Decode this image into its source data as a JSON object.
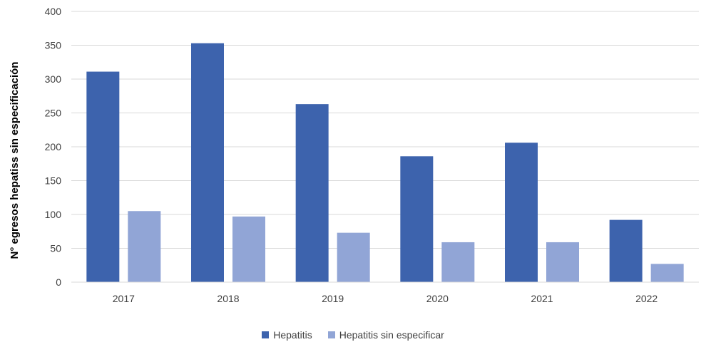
{
  "chart_data": {
    "type": "bar",
    "title": "",
    "xlabel": "",
    "ylabel": "N° egresos hepatiss sin especificación",
    "categories": [
      "2017",
      "2018",
      "2019",
      "2020",
      "2021",
      "2022"
    ],
    "series": [
      {
        "name": "Hepatitis",
        "values": [
          311,
          353,
          263,
          186,
          206,
          92
        ],
        "color": "#3d63ad"
      },
      {
        "name": "Hepatitis sin especificar",
        "values": [
          105,
          97,
          73,
          59,
          59,
          27
        ],
        "color": "#91a5d6"
      }
    ],
    "ylim": [
      0,
      400
    ],
    "yticks": [
      0,
      50,
      100,
      150,
      200,
      250,
      300,
      350,
      400
    ],
    "grid": true,
    "legend_position": "bottom"
  }
}
